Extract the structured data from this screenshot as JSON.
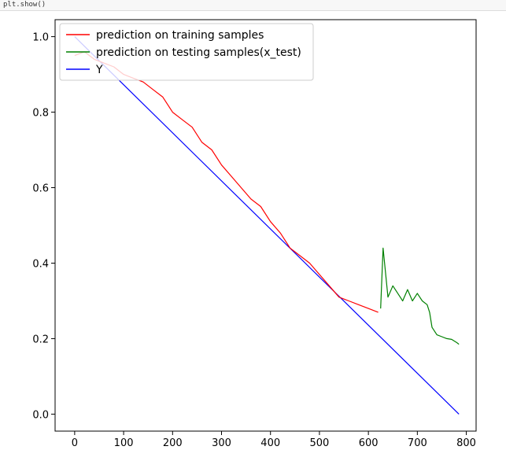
{
  "notebook": {
    "code_line": "plt.show()"
  },
  "chart_data": {
    "type": "line",
    "title": "",
    "xlabel": "",
    "ylabel": "",
    "xlim": [
      -40,
      820
    ],
    "ylim": [
      -0.045,
      1.045
    ],
    "x_ticks": [
      0,
      100,
      200,
      300,
      400,
      500,
      600,
      700,
      800
    ],
    "y_ticks": [
      0.0,
      0.2,
      0.4,
      0.6,
      0.8,
      1.0
    ],
    "grid": false,
    "legend_position": "upper-left",
    "series": [
      {
        "name": "prediction on training samples",
        "color": "#ff0000",
        "x": [
          0,
          20,
          40,
          60,
          80,
          100,
          120,
          140,
          160,
          180,
          200,
          220,
          240,
          260,
          280,
          300,
          320,
          340,
          360,
          380,
          400,
          420,
          440,
          460,
          480,
          500,
          520,
          540,
          560,
          580,
          600,
          620
        ],
        "y": [
          0.95,
          0.96,
          0.94,
          0.93,
          0.92,
          0.9,
          0.89,
          0.88,
          0.86,
          0.84,
          0.8,
          0.78,
          0.76,
          0.72,
          0.7,
          0.66,
          0.63,
          0.6,
          0.57,
          0.55,
          0.51,
          0.48,
          0.44,
          0.42,
          0.4,
          0.37,
          0.34,
          0.31,
          0.3,
          0.29,
          0.28,
          0.27
        ]
      },
      {
        "name": "prediction on testing samples(x_test)",
        "color": "#008000",
        "x": [
          625,
          630,
          640,
          650,
          660,
          670,
          680,
          690,
          700,
          710,
          720,
          725,
          730,
          740,
          750,
          760,
          770,
          780,
          785
        ],
        "y": [
          0.28,
          0.44,
          0.31,
          0.34,
          0.32,
          0.3,
          0.33,
          0.3,
          0.32,
          0.3,
          0.29,
          0.27,
          0.23,
          0.21,
          0.205,
          0.2,
          0.198,
          0.19,
          0.185
        ]
      },
      {
        "name": "Y",
        "color": "#0000ff",
        "x": [
          0,
          785
        ],
        "y": [
          1.0,
          0.0
        ]
      }
    ]
  }
}
